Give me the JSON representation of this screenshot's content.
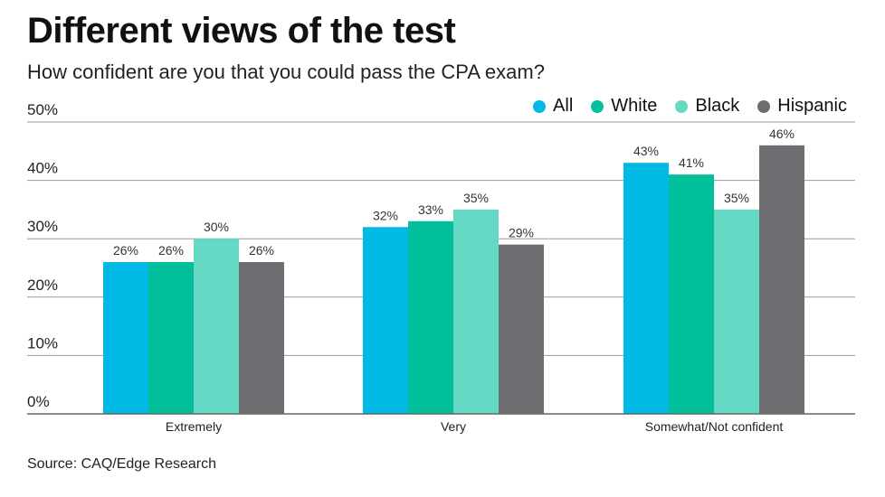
{
  "title": "Different views of the test",
  "subtitle": "How confident are you that you could pass the CPA exam?",
  "source": "Source: CAQ/Edge Research",
  "chart_data": {
    "type": "bar",
    "categories": [
      "Extremely",
      "Very",
      "Somewhat/Not confident"
    ],
    "series": [
      {
        "name": "All",
        "color": "#00b9e4",
        "values": [
          26,
          32,
          43
        ]
      },
      {
        "name": "White",
        "color": "#00bf9a",
        "values": [
          26,
          33,
          41
        ]
      },
      {
        "name": "Black",
        "color": "#66d9c4",
        "values": [
          30,
          35,
          35
        ]
      },
      {
        "name": "Hispanic",
        "color": "#6d6e71",
        "values": [
          26,
          29,
          46
        ]
      }
    ],
    "ylim": [
      0,
      50
    ],
    "yticks": [
      "0%",
      "10%",
      "20%",
      "30%",
      "40%",
      "50%"
    ],
    "value_suffix": "%",
    "grid": true,
    "legend": "top-right"
  }
}
